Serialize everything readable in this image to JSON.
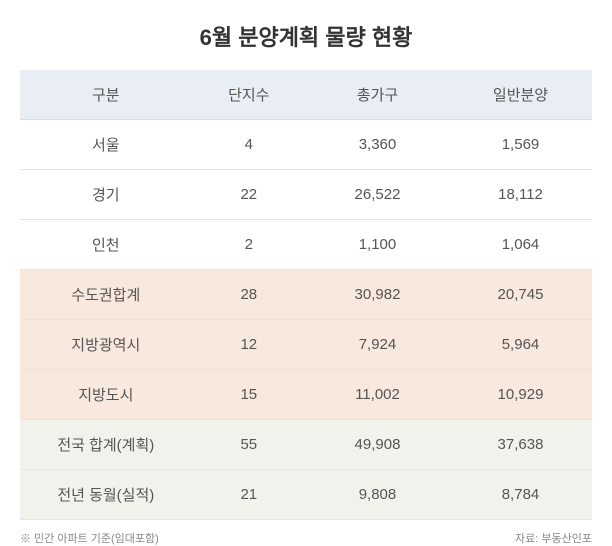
{
  "title": "6월 분양계획 물량 현황",
  "columns": [
    "구분",
    "단지수",
    "총가구",
    "일반분양"
  ],
  "rows": [
    {
      "cells": [
        "서울",
        "4",
        "3,360",
        "1,569"
      ],
      "style": "plain"
    },
    {
      "cells": [
        "경기",
        "22",
        "26,522",
        "18,112"
      ],
      "style": "plain"
    },
    {
      "cells": [
        "인천",
        "2",
        "1,100",
        "1,064"
      ],
      "style": "plain"
    },
    {
      "cells": [
        "수도권합계",
        "28",
        "30,982",
        "20,745"
      ],
      "style": "highlight"
    },
    {
      "cells": [
        "지방광역시",
        "12",
        "7,924",
        "5,964"
      ],
      "style": "highlight"
    },
    {
      "cells": [
        "지방도시",
        "15",
        "11,002",
        "10,929"
      ],
      "style": "highlight"
    },
    {
      "cells": [
        "전국 합계(계획)",
        "55",
        "49,908",
        "37,638"
      ],
      "style": "total"
    },
    {
      "cells": [
        "전년 동월(실적)",
        "21",
        "9,808",
        "8,784"
      ],
      "style": "total"
    }
  ],
  "footnote_left": "※ 민간 아파트 기준(임대포함)",
  "footnote_right": "자료: 부동산인포",
  "colors": {
    "header_bg": "#e8eef3",
    "highlight_bg": "#f8e8dd",
    "total_bg": "#f2f2ed",
    "border": "#e5e5e5",
    "text": "#555555",
    "title": "#333333",
    "footnote": "#888888"
  },
  "column_widths": [
    "30%",
    "20%",
    "25%",
    "25%"
  ]
}
